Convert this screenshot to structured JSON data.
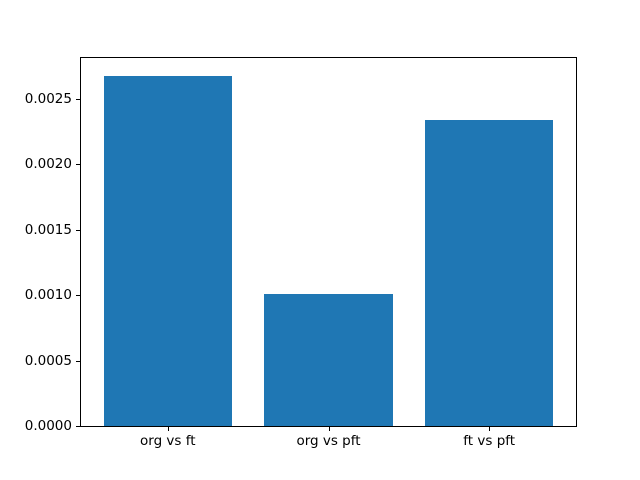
{
  "chart_data": {
    "type": "bar",
    "title": "",
    "xlabel": "",
    "ylabel": "",
    "categories": [
      "org vs ft",
      "org vs pft",
      "ft vs pft"
    ],
    "values": [
      0.00268,
      0.00101,
      0.00234
    ],
    "bar_color": "#1f77b4",
    "bar_width": 0.8,
    "xlim": [
      -0.54,
      2.54
    ],
    "ylim": [
      0,
      0.002814
    ],
    "yticks": [
      {
        "value": 0.0,
        "label": "0.0000"
      },
      {
        "value": 0.0005,
        "label": "0.0005"
      },
      {
        "value": 0.001,
        "label": "0.0010"
      },
      {
        "value": 0.0015,
        "label": "0.0015"
      },
      {
        "value": 0.002,
        "label": "0.0020"
      },
      {
        "value": 0.0025,
        "label": "0.0025"
      }
    ],
    "grid": false,
    "legend": null,
    "spine_color": "#000000",
    "background_color": "#ffffff"
  }
}
